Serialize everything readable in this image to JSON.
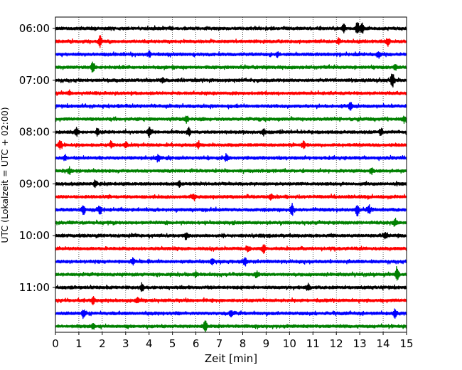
{
  "chart_data": {
    "type": "line",
    "title": "",
    "xlabel": "Zeit  [min]",
    "ylabel": "UTC (Lokalzeit = UTC + 02:00)",
    "xlim": [
      0,
      15
    ],
    "x_ticks": [
      "0",
      "1",
      "2",
      "3",
      "4",
      "5",
      "6",
      "7",
      "8",
      "9",
      "10",
      "11",
      "12",
      "13",
      "14",
      "15"
    ],
    "y_ticks": [
      "06:00",
      "07:00",
      "08:00",
      "09:00",
      "10:00",
      "11:00"
    ],
    "grid": "vertical dotted at each minute",
    "trace_interval_min": 15,
    "start_utc": "06:00",
    "end_utc": "11:45",
    "colors": [
      "#000000",
      "#ff0000",
      "#0000ff",
      "#008000"
    ],
    "trace_count": 24,
    "bursts": [
      [
        [
          12.3,
          0.35
        ],
        [
          12.9,
          0.6
        ],
        [
          13.1,
          0.5
        ]
      ],
      [
        [
          1.9,
          0.55
        ],
        [
          12.1,
          0.3
        ],
        [
          14.2,
          0.3
        ]
      ],
      [
        [
          4.0,
          0.25
        ],
        [
          9.5,
          0.25
        ],
        [
          13.8,
          0.3
        ]
      ],
      [
        [
          1.6,
          0.5
        ],
        [
          14.5,
          0.25
        ]
      ],
      [
        [
          14.4,
          0.7
        ],
        [
          4.6,
          0.2
        ]
      ],
      [
        [
          0.6,
          0.2
        ]
      ],
      [
        [
          12.6,
          0.3
        ]
      ],
      [
        [
          5.6,
          0.3
        ],
        [
          14.9,
          0.3
        ]
      ],
      [
        [
          0.9,
          0.35
        ],
        [
          1.8,
          0.35
        ],
        [
          4.0,
          0.45
        ],
        [
          5.7,
          0.35
        ],
        [
          8.9,
          0.3
        ],
        [
          13.9,
          0.35
        ]
      ],
      [
        [
          0.2,
          0.45
        ],
        [
          2.4,
          0.3
        ],
        [
          3.0,
          0.3
        ],
        [
          6.1,
          0.35
        ],
        [
          10.6,
          0.35
        ]
      ],
      [
        [
          4.4,
          0.35
        ],
        [
          7.3,
          0.3
        ],
        [
          0.4,
          0.25
        ]
      ],
      [
        [
          0.6,
          0.3
        ],
        [
          13.5,
          0.3
        ]
      ],
      [
        [
          1.7,
          0.3
        ],
        [
          5.3,
          0.25
        ]
      ],
      [
        [
          5.9,
          0.25
        ],
        [
          9.2,
          0.25
        ]
      ],
      [
        [
          1.2,
          0.45
        ],
        [
          1.9,
          0.45
        ],
        [
          10.1,
          0.55
        ],
        [
          12.9,
          0.55
        ],
        [
          13.4,
          0.4
        ]
      ],
      [
        [
          14.5,
          0.3
        ]
      ],
      [
        [
          5.6,
          0.3
        ],
        [
          14.1,
          0.3
        ]
      ],
      [
        [
          8.9,
          0.55
        ],
        [
          8.2,
          0.3
        ]
      ],
      [
        [
          3.3,
          0.3
        ],
        [
          6.7,
          0.3
        ],
        [
          8.1,
          0.35
        ]
      ],
      [
        [
          14.6,
          0.8
        ],
        [
          6.0,
          0.25
        ],
        [
          8.6,
          0.3
        ]
      ],
      [
        [
          3.7,
          0.45
        ],
        [
          10.8,
          0.3
        ]
      ],
      [
        [
          1.6,
          0.3
        ],
        [
          3.5,
          0.3
        ]
      ],
      [
        [
          1.2,
          0.4
        ],
        [
          14.5,
          0.4
        ],
        [
          7.5,
          0.25
        ]
      ],
      [
        [
          6.4,
          0.6
        ],
        [
          1.6,
          0.35
        ]
      ]
    ]
  }
}
